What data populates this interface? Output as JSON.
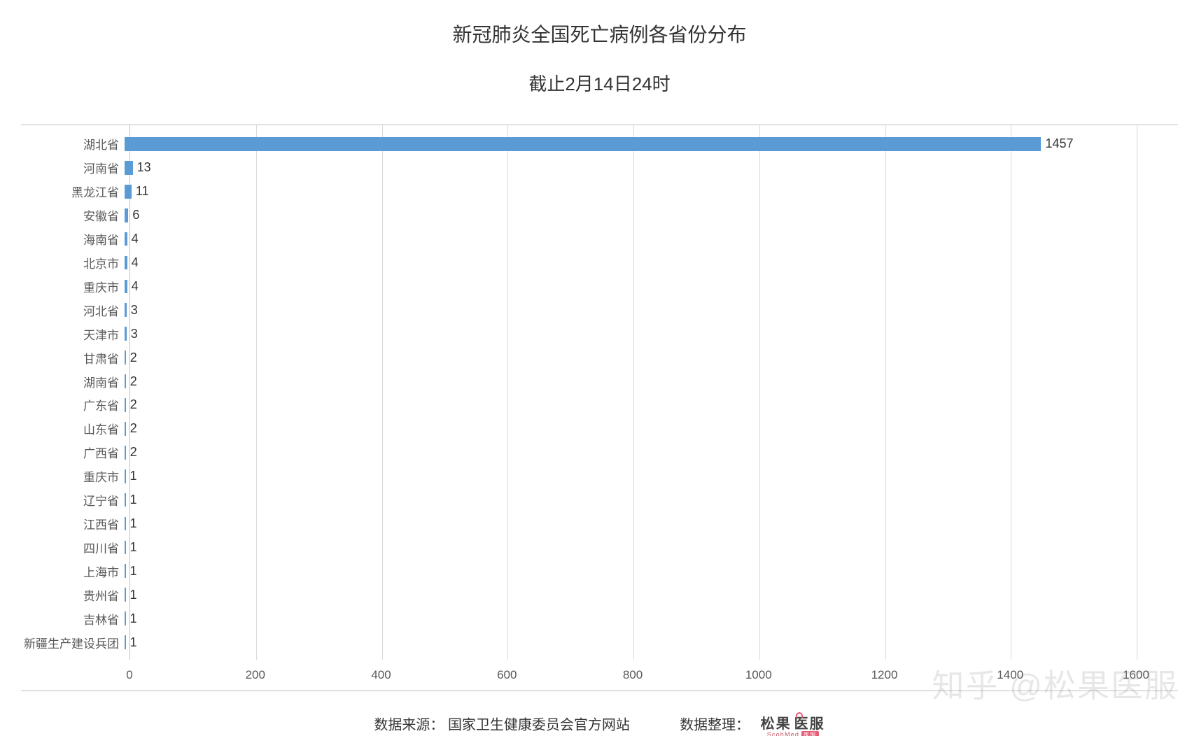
{
  "title": "新冠肺炎全国死亡病例各省份分布",
  "subtitle": "截止2月14日24时",
  "chart": {
    "type": "bar-horizontal",
    "xlim": [
      0,
      1600
    ],
    "xtick_step": 200,
    "xticks": [
      0,
      200,
      400,
      600,
      800,
      1000,
      1200,
      1400,
      1600
    ],
    "bar_color": "#5b9bd5",
    "grid_color": "#d9d9d9",
    "axis_color": "#bfbfbf",
    "background_color": "#ffffff",
    "label_color": "#595959",
    "value_color": "#333333",
    "label_fontsize": 17,
    "value_fontsize": 18,
    "tick_fontsize": 17,
    "bar_height_ratio": 0.58,
    "categories": [
      "湖北省",
      "河南省",
      "黑龙江省",
      "安徽省",
      "海南省",
      "北京市",
      "重庆市",
      "河北省",
      "天津市",
      "甘肃省",
      "湖南省",
      "广东省",
      "山东省",
      "广西省",
      "重庆市",
      "辽宁省",
      "江西省",
      "四川省",
      "上海市",
      "贵州省",
      "吉林省",
      "新疆生产建设兵团"
    ],
    "values": [
      1457,
      13,
      11,
      6,
      4,
      4,
      4,
      3,
      3,
      2,
      2,
      2,
      2,
      2,
      1,
      1,
      1,
      1,
      1,
      1,
      1,
      1
    ]
  },
  "footer": {
    "source_label": "数据来源：",
    "source_value": "国家卫生健康委员会官方网站",
    "compiled_label": "数据整理：",
    "logo_cn_left": "松果",
    "logo_cn_right": "医服",
    "logo_en": "ScohMed",
    "logo_tag": "医服"
  },
  "watermark": "知乎 @松果医服"
}
